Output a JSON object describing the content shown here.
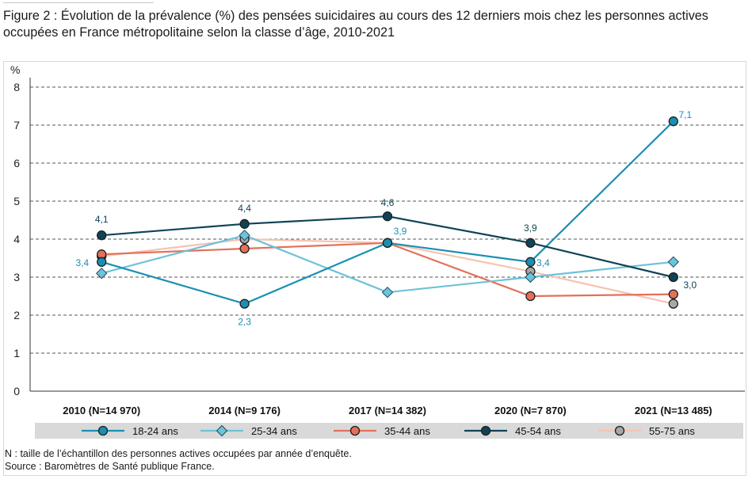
{
  "title": "Figure 2 : Évolution de la prévalence (%) des pensées suicidaires au cours des 12 derniers mois chez les personnes actives occupées en France métropolitaine selon la classe d’âge, 2010-2021",
  "footnotes": {
    "note": "N : taille de l’échantillon des personnes actives occupées par année d’enquête.",
    "source": "Source : Baromètres de Santé publique France."
  },
  "colors": {
    "18-24": "#1a8fb3",
    "25-34": "#6ec2d9",
    "35-44": "#e4705a",
    "45-54": "#0f4456",
    "55-75": "#f6c3b1",
    "grid": "#555555",
    "legend_bg": "#d9d9d9"
  },
  "chart_data": {
    "type": "line",
    "ylabel": "%",
    "ylim": [
      0,
      8
    ],
    "yticks": [
      "0",
      "1",
      "2",
      "3",
      "4",
      "5",
      "6",
      "7",
      "8"
    ],
    "categories": [
      "2010 (N=14 970)",
      "2014 (N=9 176)",
      "2017 (N=14 382)",
      "2020 (N=7 870)",
      "2021 (N=13 485)"
    ],
    "grid": "horizontal dashed",
    "legend": "bottom",
    "series": [
      {
        "name": "18-24 ans",
        "values": [
          3.4,
          2.3,
          3.9,
          3.4,
          7.1
        ],
        "marker": "circle",
        "color": "#1a8fb3",
        "labels": [
          "3,4",
          "2,3",
          "3,9",
          "3,4",
          "7,1"
        ]
      },
      {
        "name": "25-34 ans",
        "values": [
          3.1,
          4.1,
          2.6,
          3.0,
          3.4
        ],
        "marker": "diamond",
        "color": "#6ec2d9",
        "labels": []
      },
      {
        "name": "35-44 ans",
        "values": [
          3.6,
          3.75,
          3.9,
          2.5,
          2.55
        ],
        "marker": "circle",
        "color": "#e4705a",
        "labels": []
      },
      {
        "name": "45-54 ans",
        "values": [
          4.1,
          4.4,
          4.6,
          3.9,
          3.0
        ],
        "marker": "circle",
        "color": "#0f4456",
        "labels": [
          "4,1",
          "4,4",
          "4,6",
          "3,9",
          "3,0"
        ]
      },
      {
        "name": "55-75 ans",
        "values": [
          3.55,
          4.0,
          3.9,
          3.15,
          2.3
        ],
        "marker": "circle",
        "color": "#f6c3b1",
        "marker_fill": "#a8a8a8",
        "labels": []
      }
    ]
  }
}
